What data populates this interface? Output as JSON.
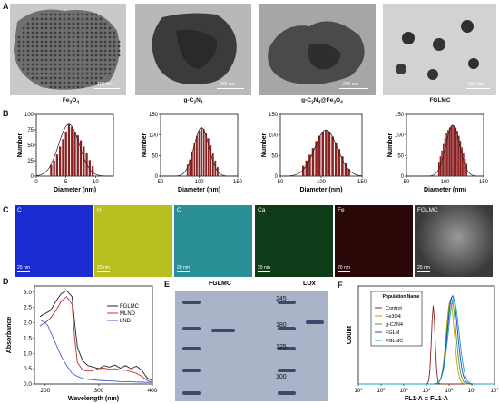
{
  "panels": {
    "A": {
      "letter": "A",
      "images": [
        {
          "label": "Fe<sub>3</sub>O<sub>4</sub>",
          "label_text": "Fe3O4",
          "scale": "100 nm"
        },
        {
          "label_text": "g-C3N4",
          "scale": "200 nm"
        },
        {
          "label_text": "g-C3N4@Fe3O4",
          "scale": "200 nm"
        },
        {
          "label_text": "FGLMC",
          "scale": "100 nm"
        }
      ]
    },
    "B": {
      "letter": "B"
    },
    "C": {
      "letter": "C",
      "maps": [
        {
          "label": "C",
          "scale": "20 nm",
          "color": "#1a2bd0"
        },
        {
          "label": "H",
          "scale": "20 nm",
          "color": "#b8c020"
        },
        {
          "label": "O",
          "scale": "20 nm",
          "color": "#2a8f96"
        },
        {
          "label": "Ca",
          "scale": "20 nm",
          "color": "#0e3b18"
        },
        {
          "label": "Fe",
          "scale": "20 nm",
          "color": "#2a0808"
        },
        {
          "label": "FGLMC",
          "scale": "20 nm",
          "color": "#4a4a4a"
        }
      ]
    },
    "D": {
      "letter": "D",
      "legend": [
        "FGLMC",
        "MLND",
        "LND"
      ]
    },
    "E": {
      "letter": "E",
      "headers": [
        "FGLMC",
        "LOx"
      ],
      "markers": [
        "245",
        "180",
        "125",
        "100"
      ]
    },
    "F": {
      "letter": "F",
      "legend_title": "Population Name",
      "legend_items": [
        "Control",
        "Fe3O4",
        "g-C3N4",
        "FGLM",
        "FGLMC"
      ]
    }
  },
  "chart_data": [
    {
      "type": "bar",
      "title": "Fe3O4",
      "xlabel": "Diameter (nm)",
      "ylabel": "Number",
      "xlim": [
        0,
        13
      ],
      "ylim": [
        0,
        100
      ],
      "xticks": [
        0,
        5,
        10
      ],
      "yticks": [
        0,
        25,
        50,
        75,
        100
      ],
      "x": [
        2.5,
        3,
        3.5,
        4,
        4.5,
        5,
        5.5,
        6,
        6.5,
        7,
        7.5,
        8,
        8.5,
        9,
        9.5
      ],
      "values": [
        18,
        25,
        35,
        48,
        60,
        72,
        84,
        80,
        72,
        66,
        58,
        48,
        38,
        26,
        16
      ],
      "fit_color": "#222222",
      "bar_color": "#8a2020"
    },
    {
      "type": "bar",
      "title": "g-C3N4",
      "xlabel": "Diameter (nm)",
      "ylabel": "Number",
      "xlim": [
        50,
        150
      ],
      "ylim": [
        0,
        150
      ],
      "xticks": [
        50,
        100,
        150
      ],
      "yticks": [
        0,
        50,
        100,
        150
      ],
      "x": [
        85,
        88,
        91,
        94,
        97,
        100,
        103,
        106,
        109,
        112,
        115,
        118,
        121,
        124
      ],
      "values": [
        28,
        40,
        60,
        80,
        98,
        110,
        118,
        115,
        105,
        92,
        75,
        55,
        38,
        22
      ],
      "fit_color": "#222222",
      "bar_color": "#8a2020"
    },
    {
      "type": "bar",
      "title": "g-C3N4@Fe3O4",
      "xlabel": "Diameter (nm)",
      "ylabel": "Number",
      "xlim": [
        50,
        150
      ],
      "ylim": [
        0,
        150
      ],
      "xticks": [
        50,
        100,
        150
      ],
      "yticks": [
        0,
        50,
        100,
        150
      ],
      "x": [
        78,
        82,
        86,
        90,
        94,
        98,
        102,
        106,
        110,
        114,
        118,
        122,
        126,
        130,
        134
      ],
      "values": [
        25,
        38,
        52,
        68,
        85,
        98,
        108,
        112,
        108,
        96,
        82,
        66,
        48,
        32,
        18
      ],
      "fit_color": "#222222",
      "bar_color": "#8a2020"
    },
    {
      "type": "bar",
      "title": "FGLMC",
      "xlabel": "Diameter (nm)",
      "ylabel": "Number",
      "xlim": [
        50,
        150
      ],
      "ylim": [
        0,
        150
      ],
      "xticks": [
        50,
        100,
        150
      ],
      "yticks": [
        0,
        50,
        100,
        150
      ],
      "x": [
        92,
        94,
        96,
        98,
        100,
        102,
        104,
        106,
        108,
        110,
        112,
        114,
        116,
        118,
        120,
        122,
        124,
        126,
        128
      ],
      "values": [
        35,
        48,
        62,
        78,
        92,
        104,
        112,
        118,
        122,
        124,
        122,
        118,
        110,
        98,
        86,
        70,
        56,
        42,
        30
      ],
      "fit_color": "#222222",
      "bar_color": "#8a2020"
    },
    {
      "type": "line",
      "title": "",
      "xlabel": "Wavelength (nm)",
      "ylabel": "Absorbance",
      "xlim": [
        180,
        400
      ],
      "ylim": [
        0,
        3.2
      ],
      "xticks": [
        200,
        300,
        400
      ],
      "yticks": [
        0,
        0.5,
        1.0,
        1.5,
        2.0,
        2.5,
        3.0
      ],
      "series": [
        {
          "name": "FGLMC",
          "color": "#222222",
          "x": [
            190,
            200,
            210,
            220,
            230,
            240,
            250,
            255,
            260,
            270,
            280,
            290,
            300,
            310,
            320,
            330,
            340,
            350,
            360,
            370,
            380,
            390,
            400
          ],
          "y": [
            2.2,
            2.3,
            2.4,
            2.7,
            2.95,
            3.05,
            2.85,
            2.0,
            1.2,
            0.75,
            0.6,
            0.55,
            0.5,
            0.6,
            0.55,
            0.62,
            0.52,
            0.6,
            0.5,
            0.58,
            0.45,
            0.2,
            0.1
          ]
        },
        {
          "name": "MLND",
          "color": "#c03030",
          "x": [
            190,
            200,
            210,
            220,
            230,
            240,
            250,
            255,
            260,
            270,
            280,
            290,
            300,
            310,
            320,
            330,
            340,
            350,
            360,
            370,
            380,
            390,
            400
          ],
          "y": [
            1.9,
            2.0,
            2.15,
            2.4,
            2.7,
            2.85,
            2.6,
            1.5,
            0.7,
            0.45,
            0.42,
            0.44,
            0.5,
            0.52,
            0.48,
            0.5,
            0.46,
            0.45,
            0.4,
            0.35,
            0.25,
            0.12,
            0.05
          ]
        },
        {
          "name": "LND",
          "color": "#4060c8",
          "x": [
            190,
            200,
            205,
            210,
            220,
            230,
            240,
            250,
            260,
            270,
            280,
            300,
            320,
            340,
            360,
            380,
            400
          ],
          "y": [
            2.1,
            2.0,
            1.9,
            1.7,
            1.3,
            0.9,
            0.6,
            0.35,
            0.25,
            0.18,
            0.15,
            0.12,
            0.1,
            0.08,
            0.07,
            0.06,
            0.05
          ]
        }
      ]
    },
    {
      "type": "line",
      "title": "",
      "xlabel": "FL1-A :: FL1-A",
      "ylabel": "Count",
      "xscale": "log",
      "xlim": [
        10,
        10000000
      ],
      "xticks": [
        "10^1",
        "10^2",
        "10^3",
        "10^4",
        "10^5",
        "10^6",
        "10^7"
      ],
      "series": [
        {
          "name": "Control",
          "color": "#8b2020",
          "center": 4.3,
          "width": 0.08,
          "height": 0.8
        },
        {
          "name": "Fe3O4",
          "color": "#c8a000",
          "center": 5.05,
          "width": 0.18,
          "height": 0.85
        },
        {
          "name": "g-C3N4",
          "color": "#3aa33a",
          "center": 5.1,
          "width": 0.2,
          "height": 0.88
        },
        {
          "name": "FGLM",
          "color": "#2a3cc8",
          "center": 5.15,
          "width": 0.22,
          "height": 0.9
        },
        {
          "name": "FGLMC",
          "color": "#1aa0c8",
          "center": 5.2,
          "width": 0.24,
          "height": 0.86
        }
      ]
    }
  ]
}
